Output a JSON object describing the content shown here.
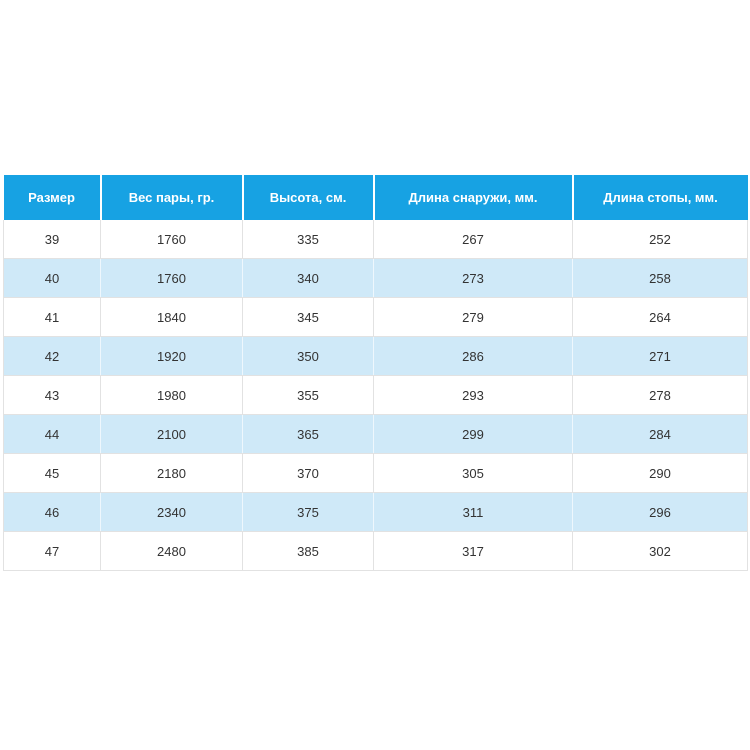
{
  "colors": {
    "header_bg": "#17a2e3",
    "header_text": "#ffffff",
    "stripe_bg": "#cfe9f8",
    "cell_text": "#333333",
    "grid_line": "#e2e2e2"
  },
  "chart_data": {
    "type": "table",
    "title": "",
    "columns": [
      "Размер",
      "Вес пары, гр.",
      "Высота, см.",
      "Длина снаружи, мм.",
      "Длина стопы, мм."
    ],
    "rows": [
      [
        "39",
        "1760",
        "335",
        "267",
        "252"
      ],
      [
        "40",
        "1760",
        "340",
        "273",
        "258"
      ],
      [
        "41",
        "1840",
        "345",
        "279",
        "264"
      ],
      [
        "42",
        "1920",
        "350",
        "286",
        "271"
      ],
      [
        "43",
        "1980",
        "355",
        "293",
        "278"
      ],
      [
        "44",
        "2100",
        "365",
        "299",
        "284"
      ],
      [
        "45",
        "2180",
        "370",
        "305",
        "290"
      ],
      [
        "46",
        "2340",
        "375",
        "311",
        "296"
      ],
      [
        "47",
        "2480",
        "385",
        "317",
        "302"
      ]
    ],
    "layout": {
      "striped_row_indices": [
        1,
        3,
        5,
        7
      ],
      "grid": true,
      "header_position": "top"
    }
  }
}
